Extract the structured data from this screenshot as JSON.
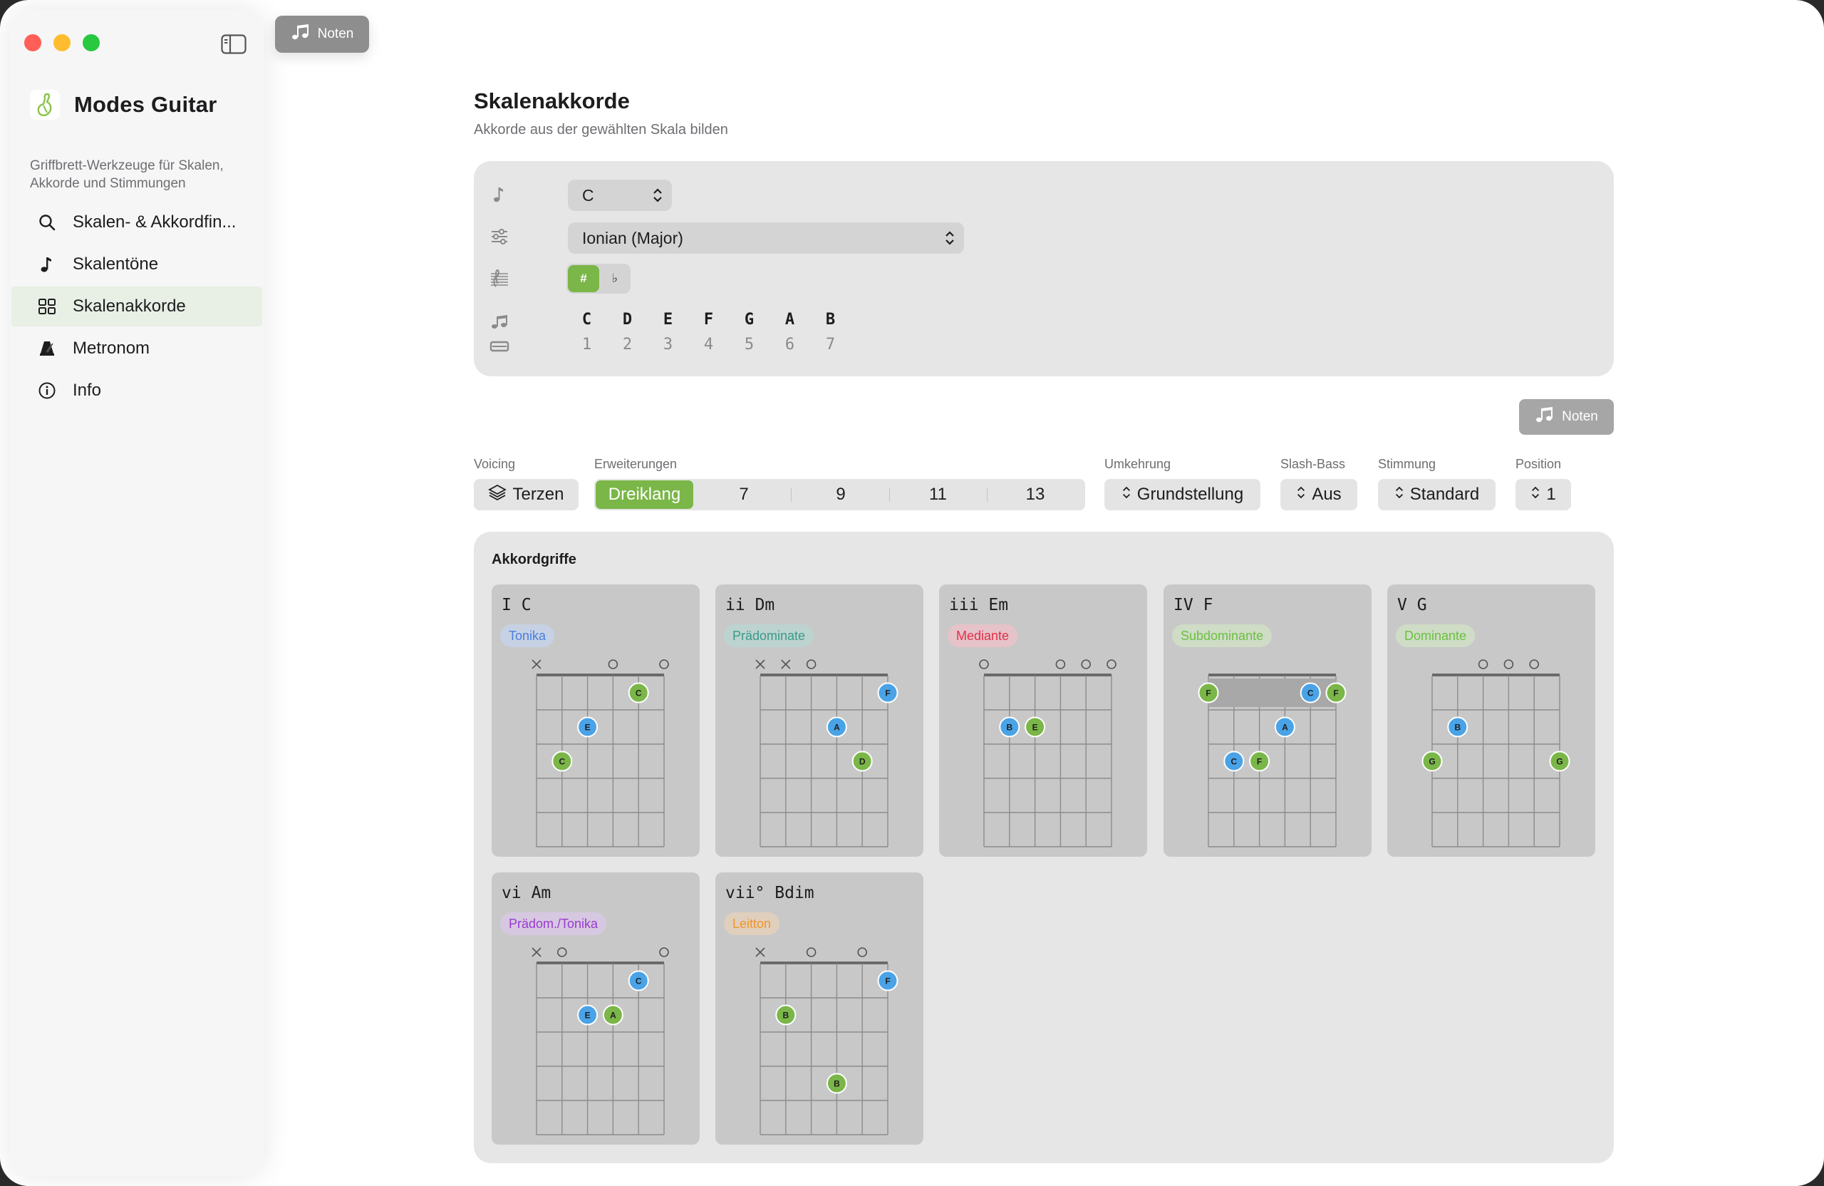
{
  "app": {
    "name": "Modes Guitar",
    "subtitle": "Griffbrett-Werkzeuge für Skalen, Akkorde und Stimmungen"
  },
  "toolbar": {
    "noten_label": "Noten"
  },
  "sidebar": {
    "items": [
      {
        "label": "Skalen- & Akkordfin...",
        "icon": "search-icon",
        "active": false
      },
      {
        "label": "Skalentöne",
        "icon": "music-note-icon",
        "active": false
      },
      {
        "label": "Skalenakkorde",
        "icon": "grid-icon",
        "active": true
      },
      {
        "label": "Metronom",
        "icon": "metronome-icon",
        "active": false
      },
      {
        "label": "Info",
        "icon": "info-icon",
        "active": false
      }
    ]
  },
  "main": {
    "title": "Skalenakkorde",
    "subtitle": "Akkorde aus der gewählten Skala bilden",
    "root_select": "C",
    "scale_select": "Ionian (Major)",
    "accidentals": {
      "sharp": "#",
      "flat": "♭",
      "selected": "sharp"
    },
    "scale_notes": [
      "C",
      "D",
      "E",
      "F",
      "G",
      "A",
      "B"
    ],
    "scale_degrees": [
      "1",
      "2",
      "3",
      "4",
      "5",
      "6",
      "7"
    ],
    "noten_label": "Noten",
    "controls": {
      "voicing": {
        "label": "Voicing",
        "value": "Terzen"
      },
      "extensions": {
        "label": "Erweiterungen",
        "options": [
          "Dreiklang",
          "7",
          "9",
          "11",
          "13"
        ],
        "selected": "Dreiklang"
      },
      "inversion": {
        "label": "Umkehrung",
        "value": "Grundstellung"
      },
      "slash_bass": {
        "label": "Slash-Bass",
        "value": "Aus"
      },
      "tuning": {
        "label": "Stimmung",
        "value": "Standard"
      },
      "position": {
        "label": "Position",
        "value": "1"
      }
    },
    "chords_title": "Akkordgriffe"
  },
  "colors": {
    "accent": "#7ab648",
    "root_dot": "#7ab648",
    "tone_dot": "#4aa3e6",
    "tonika": "#4a7fe0",
    "praedominante": "#3a9a8a",
    "mediante": "#e0304a",
    "subdominante": "#6cc040",
    "dominante": "#6cc040",
    "praedom_tonika": "#9a3ad0",
    "leitton": "#f0962a"
  },
  "chords": [
    {
      "numeral": "I",
      "name": "C",
      "function": "Tonika",
      "badge_color": "#4a7fe0",
      "badge_bg": "#c6d2e4",
      "strings": [
        "x",
        "",
        "",
        "o",
        "",
        "o"
      ],
      "barre": null,
      "dots": [
        {
          "string": 2,
          "fret": 3,
          "note": "C",
          "root": true
        },
        {
          "string": 3,
          "fret": 2,
          "note": "E",
          "root": false
        },
        {
          "string": 5,
          "fret": 1,
          "note": "C",
          "root": true
        }
      ]
    },
    {
      "numeral": "ii",
      "name": "Dm",
      "function": "Prädominate",
      "badge_color": "#3a9a8a",
      "badge_bg": "#bdd3cf",
      "strings": [
        "x",
        "x",
        "o",
        "",
        "",
        ""
      ],
      "barre": null,
      "dots": [
        {
          "string": 4,
          "fret": 2,
          "note": "A",
          "root": false
        },
        {
          "string": 5,
          "fret": 3,
          "note": "D",
          "root": true
        },
        {
          "string": 6,
          "fret": 1,
          "note": "F",
          "root": false
        }
      ]
    },
    {
      "numeral": "iii",
      "name": "Em",
      "function": "Mediante",
      "badge_color": "#e0304a",
      "badge_bg": "#e6c3c8",
      "strings": [
        "o",
        "",
        "",
        "o",
        "o",
        "o"
      ],
      "barre": null,
      "dots": [
        {
          "string": 2,
          "fret": 2,
          "note": "B",
          "root": false
        },
        {
          "string": 3,
          "fret": 2,
          "note": "E",
          "root": true
        }
      ]
    },
    {
      "numeral": "IV",
      "name": "F",
      "function": "Subdominante",
      "badge_color": "#6cc040",
      "badge_bg": "#cfdcc6",
      "strings": [
        "",
        "",
        "",
        "",
        "",
        ""
      ],
      "barre": {
        "fret": 1,
        "from": 1,
        "to": 6
      },
      "dots": [
        {
          "string": 1,
          "fret": 1,
          "note": "F",
          "root": true
        },
        {
          "string": 5,
          "fret": 1,
          "note": "C",
          "root": false
        },
        {
          "string": 6,
          "fret": 1,
          "note": "F",
          "root": true
        },
        {
          "string": 4,
          "fret": 2,
          "note": "A",
          "root": false
        },
        {
          "string": 2,
          "fret": 3,
          "note": "C",
          "root": false
        },
        {
          "string": 3,
          "fret": 3,
          "note": "F",
          "root": true
        }
      ]
    },
    {
      "numeral": "V",
      "name": "G",
      "function": "Dominante",
      "badge_color": "#6cc040",
      "badge_bg": "#cfdcc6",
      "strings": [
        "",
        "",
        "o",
        "o",
        "o",
        ""
      ],
      "barre": null,
      "dots": [
        {
          "string": 2,
          "fret": 2,
          "note": "B",
          "root": false
        },
        {
          "string": 1,
          "fret": 3,
          "note": "G",
          "root": true
        },
        {
          "string": 6,
          "fret": 3,
          "note": "G",
          "root": true
        }
      ]
    },
    {
      "numeral": "vi",
      "name": "Am",
      "function": "Prädom./Tonika",
      "badge_color": "#9a3ad0",
      "badge_bg": "#d6c8e0",
      "strings": [
        "x",
        "o",
        "",
        "",
        "",
        "o"
      ],
      "barre": null,
      "dots": [
        {
          "string": 5,
          "fret": 1,
          "note": "C",
          "root": false
        },
        {
          "string": 3,
          "fret": 2,
          "note": "E",
          "root": false
        },
        {
          "string": 4,
          "fret": 2,
          "note": "A",
          "root": true
        }
      ]
    },
    {
      "numeral": "vii°",
      "name": "Bdim",
      "function": "Leitton",
      "badge_color": "#f0962a",
      "badge_bg": "#e0cfbd",
      "strings": [
        "x",
        "",
        "o",
        "",
        "o",
        ""
      ],
      "barre": null,
      "dots": [
        {
          "string": 6,
          "fret": 1,
          "note": "F",
          "root": false
        },
        {
          "string": 2,
          "fret": 2,
          "note": "B",
          "root": true
        },
        {
          "string": 4,
          "fret": 4,
          "note": "B",
          "root": true
        }
      ]
    }
  ]
}
